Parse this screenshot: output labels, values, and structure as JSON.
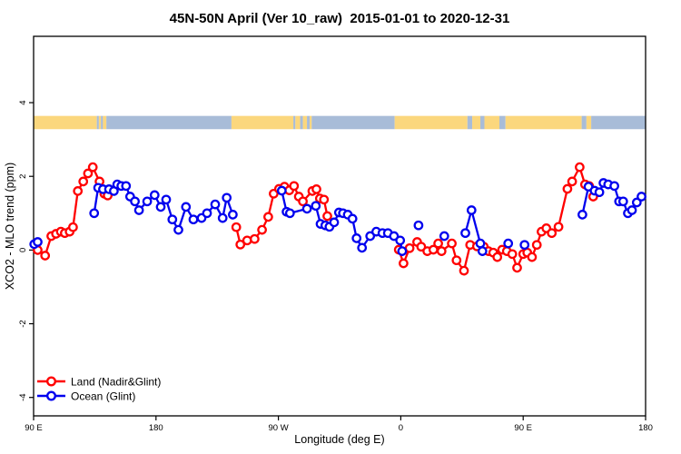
{
  "title": "45N-50N April (Ver 10_raw)  2015-01-01 to 2020-12-31",
  "xlabel": "Longitude (deg E)",
  "ylabel": "XCO2 - MLO trend (ppm)",
  "legend": {
    "items": [
      {
        "label": "Land (Nadir&Glint)",
        "color": "#ff0000"
      },
      {
        "label": "Ocean (Glint)",
        "color": "#0000ee"
      }
    ]
  },
  "colors": {
    "axis": "#000000",
    "background": "#ffffff",
    "land_series": "#ff0000",
    "ocean_series": "#0000ee",
    "band_land": "#fbd77d",
    "band_ocean": "#a8bcd8"
  },
  "chart_data": {
    "type": "line",
    "title": "45N-50N April (Ver 10_raw)  2015-01-01 to 2020-12-31",
    "xlabel": "Longitude (deg E)",
    "ylabel": "XCO2 - MLO trend (ppm)",
    "xlim": [
      90,
      540
    ],
    "ylim": [
      -4.5,
      5.8
    ],
    "grid": false,
    "legend_position": "bottom-left",
    "x_ticks": [
      {
        "lon": 90,
        "label": "90 E"
      },
      {
        "lon": 180,
        "label": "180"
      },
      {
        "lon": 270,
        "label": "90 W"
      },
      {
        "lon": 360,
        "label": "0"
      },
      {
        "lon": 450,
        "label": "90 E"
      },
      {
        "lon": 540,
        "label": "180"
      }
    ],
    "y_ticks": [
      {
        "value": -4,
        "label": "-4"
      },
      {
        "value": -2,
        "label": "-2"
      },
      {
        "value": 0,
        "label": "0"
      },
      {
        "value": 2,
        "label": "2"
      },
      {
        "value": 4,
        "label": "4"
      }
    ],
    "series": [
      {
        "name": "Land (Nadir&Glint)",
        "color": "#ff0000",
        "marker": "open-circle",
        "segments": [
          [
            [
              93,
              0.0
            ],
            [
              98.5,
              -0.15
            ],
            [
              103,
              0.38
            ],
            [
              106.5,
              0.44
            ],
            [
              110,
              0.5
            ],
            [
              113,
              0.46
            ],
            [
              116.5,
              0.5
            ],
            [
              119,
              0.62
            ],
            [
              122.5,
              1.6
            ],
            [
              126.5,
              1.86
            ],
            [
              130,
              2.08
            ],
            [
              133.5,
              2.25
            ],
            [
              138.5,
              1.86
            ],
            [
              142,
              1.53
            ],
            [
              144.5,
              1.48
            ]
          ],
          [
            [
              239,
              0.62
            ],
            [
              242,
              0.15
            ],
            [
              247,
              0.26
            ],
            [
              252.5,
              0.3
            ],
            [
              258,
              0.55
            ],
            [
              262.5,
              0.9
            ],
            [
              266.5,
              1.53
            ],
            [
              270.5,
              1.66
            ],
            [
              274.5,
              1.72
            ],
            [
              278,
              1.62
            ],
            [
              281.5,
              1.74
            ],
            [
              285,
              1.45
            ],
            [
              288,
              1.32
            ],
            [
              295,
              1.6
            ],
            [
              298,
              1.65
            ],
            [
              300.5,
              1.4
            ],
            [
              303.5,
              1.37
            ],
            [
              306,
              0.92
            ]
          ],
          [
            [
              358.5,
              0.01
            ],
            [
              362,
              -0.36
            ],
            [
              366.5,
              0.05
            ],
            [
              372,
              0.22
            ],
            [
              375,
              0.09
            ],
            [
              379.5,
              -0.03
            ],
            [
              384,
              0.01
            ],
            [
              387.5,
              0.18
            ],
            [
              390,
              -0.03
            ],
            [
              397.5,
              0.18
            ],
            [
              401,
              -0.28
            ],
            [
              406.5,
              -0.56
            ],
            [
              411,
              0.14
            ],
            [
              416,
              0.1
            ],
            [
              421,
              0.09
            ],
            [
              424.5,
              -0.03
            ],
            [
              428,
              -0.07
            ],
            [
              431,
              -0.19
            ],
            [
              434.5,
              0.01
            ],
            [
              438,
              -0.03
            ],
            [
              442,
              -0.11
            ],
            [
              445.5,
              -0.48
            ],
            [
              450,
              -0.11
            ],
            [
              453,
              -0.07
            ],
            [
              456.5,
              -0.19
            ],
            [
              460,
              0.14
            ],
            [
              463.5,
              0.5
            ],
            [
              467,
              0.59
            ],
            [
              471,
              0.46
            ],
            [
              476,
              0.63
            ],
            [
              482.5,
              1.66
            ],
            [
              486,
              1.86
            ],
            [
              491.5,
              2.25
            ],
            [
              495.5,
              1.78
            ],
            [
              498.5,
              1.74
            ],
            [
              501.5,
              1.45
            ]
          ]
        ]
      },
      {
        "name": "Ocean (Glint)",
        "color": "#0000ee",
        "marker": "open-circle",
        "segments": [
          [
            [
              90.5,
              0.16
            ],
            [
              93,
              0.22
            ]
          ],
          [
            [
              134.5,
              1.0
            ],
            [
              137.5,
              1.69
            ],
            [
              141,
              1.65
            ],
            [
              145.5,
              1.65
            ],
            [
              149,
              1.6
            ],
            [
              151.5,
              1.78
            ],
            [
              154.5,
              1.74
            ],
            [
              158,
              1.74
            ],
            [
              161,
              1.45
            ],
            [
              164.5,
              1.32
            ],
            [
              167.5,
              1.08
            ],
            [
              173.5,
              1.32
            ],
            [
              179,
              1.49
            ],
            [
              183.5,
              1.17
            ],
            [
              187.5,
              1.37
            ],
            [
              192,
              0.83
            ],
            [
              196.5,
              0.55
            ],
            [
              202,
              1.17
            ],
            [
              207.5,
              0.83
            ],
            [
              213.5,
              0.87
            ],
            [
              217.5,
              1.0
            ],
            [
              223.5,
              1.24
            ],
            [
              229,
              0.87
            ],
            [
              232,
              1.42
            ],
            [
              236.5,
              0.96
            ]
          ],
          [
            [
              272.5,
              1.61
            ],
            [
              276,
              1.04
            ],
            [
              278.5,
              1.0
            ],
            [
              291,
              1.12
            ],
            [
              297.5,
              1.2
            ],
            [
              301,
              0.71
            ],
            [
              304.5,
              0.67
            ],
            [
              307.5,
              0.63
            ],
            [
              311,
              0.75
            ],
            [
              314.5,
              1.02
            ],
            [
              317.5,
              1.0
            ],
            [
              321,
              0.96
            ],
            [
              324.5,
              0.85
            ],
            [
              327.5,
              0.32
            ],
            [
              331.5,
              0.06
            ],
            [
              337.5,
              0.38
            ],
            [
              342,
              0.5
            ],
            [
              346.5,
              0.46
            ],
            [
              350.5,
              0.46
            ],
            [
              355,
              0.38
            ],
            [
              359.5,
              0.26
            ],
            [
              361,
              -0.03
            ]
          ],
          [
            [
              373,
              0.67
            ]
          ],
          [
            [
              392,
              0.38
            ]
          ],
          [
            [
              407.5,
              0.46
            ],
            [
              412,
              1.08
            ],
            [
              418.5,
              0.18
            ],
            [
              420,
              -0.03
            ]
          ],
          [
            [
              439,
              0.18
            ]
          ],
          [
            [
              451,
              0.14
            ]
          ],
          [
            [
              493.5,
              0.96
            ],
            [
              498,
              1.72
            ],
            [
              502.5,
              1.61
            ],
            [
              506,
              1.57
            ],
            [
              509,
              1.82
            ],
            [
              512.5,
              1.78
            ],
            [
              517,
              1.74
            ],
            [
              520.5,
              1.32
            ],
            [
              523.5,
              1.32
            ],
            [
              527,
              1.0
            ],
            [
              530,
              1.08
            ],
            [
              533.5,
              1.29
            ],
            [
              537,
              1.45
            ]
          ]
        ]
      }
    ],
    "land_ocean_band": {
      "description": "land/ocean mask strip for 45N-50N",
      "value_range": [
        3.28,
        3.64
      ],
      "land_color": "#fbd77d",
      "ocean_color": "#a8bcd8",
      "segments": [
        {
          "from": 90,
          "to": 136.5,
          "type": "land"
        },
        {
          "from": 136.5,
          "to": 138,
          "type": "ocean"
        },
        {
          "from": 138,
          "to": 139.5,
          "type": "land"
        },
        {
          "from": 139.5,
          "to": 141,
          "type": "ocean"
        },
        {
          "from": 141,
          "to": 143.5,
          "type": "land"
        },
        {
          "from": 143.5,
          "to": 235.5,
          "type": "ocean"
        },
        {
          "from": 235.5,
          "to": 281,
          "type": "land"
        },
        {
          "from": 281,
          "to": 282.5,
          "type": "ocean"
        },
        {
          "from": 282.5,
          "to": 286,
          "type": "land"
        },
        {
          "from": 286,
          "to": 288,
          "type": "ocean"
        },
        {
          "from": 288,
          "to": 291,
          "type": "land"
        },
        {
          "from": 291,
          "to": 293,
          "type": "ocean"
        },
        {
          "from": 293,
          "to": 294.5,
          "type": "land"
        },
        {
          "from": 294.5,
          "to": 355.5,
          "type": "ocean"
        },
        {
          "from": 355.5,
          "to": 409,
          "type": "land"
        },
        {
          "from": 409,
          "to": 412.5,
          "type": "ocean"
        },
        {
          "from": 412.5,
          "to": 418.5,
          "type": "land"
        },
        {
          "from": 418.5,
          "to": 421.5,
          "type": "ocean"
        },
        {
          "from": 421.5,
          "to": 432.5,
          "type": "land"
        },
        {
          "from": 432.5,
          "to": 437,
          "type": "ocean"
        },
        {
          "from": 437,
          "to": 493,
          "type": "land"
        },
        {
          "from": 493,
          "to": 496.5,
          "type": "ocean"
        },
        {
          "from": 496.5,
          "to": 500,
          "type": "land"
        },
        {
          "from": 500,
          "to": 540,
          "type": "ocean"
        }
      ]
    }
  }
}
